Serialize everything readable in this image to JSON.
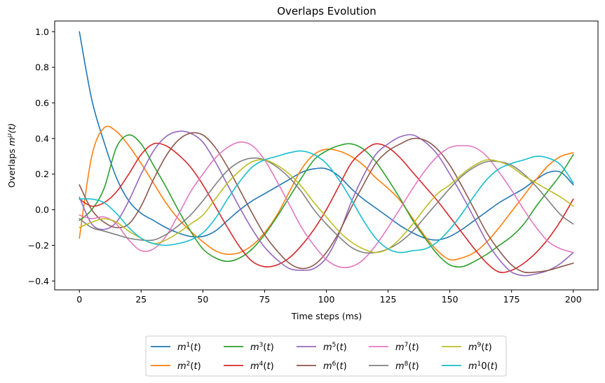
{
  "chart_data": {
    "type": "line",
    "title": "Overlaps Evolution",
    "xlabel": "Time steps (ms)",
    "ylabel": "Overlaps mμ(t)",
    "ylabel_parts": {
      "base": "Overlaps ",
      "var": "m",
      "sup": "μ",
      "tail": "(t)"
    },
    "xlim": [
      -10,
      210
    ],
    "ylim": [
      -0.45,
      1.06
    ],
    "xticks": [
      0,
      25,
      50,
      75,
      100,
      125,
      150,
      175,
      200
    ],
    "yticks": [
      -0.4,
      -0.2,
      0.0,
      0.2,
      0.4,
      0.6,
      0.8,
      1.0
    ],
    "ytick_labels": [
      "−0.4",
      "−0.2",
      "0.0",
      "0.2",
      "0.4",
      "0.6",
      "0.8",
      "1.0"
    ],
    "grid": false,
    "legend_placement": "below",
    "x": [
      0,
      5,
      10,
      15,
      20,
      25,
      30,
      35,
      40,
      45,
      50,
      55,
      60,
      65,
      70,
      75,
      80,
      85,
      90,
      95,
      100,
      105,
      110,
      115,
      120,
      125,
      130,
      135,
      140,
      145,
      150,
      155,
      160,
      165,
      170,
      175,
      180,
      185,
      190,
      195,
      200
    ],
    "series": [
      {
        "name": "m1(t)",
        "sup": "1",
        "color": "#1f77b4",
        "values": [
          1.0,
          0.62,
          0.38,
          0.18,
          0.05,
          -0.02,
          -0.06,
          -0.1,
          -0.13,
          -0.15,
          -0.15,
          -0.12,
          -0.06,
          0.0,
          0.05,
          0.09,
          0.13,
          0.17,
          0.21,
          0.23,
          0.23,
          0.19,
          0.12,
          0.06,
          0.01,
          -0.04,
          -0.09,
          -0.13,
          -0.16,
          -0.17,
          -0.15,
          -0.11,
          -0.06,
          -0.01,
          0.04,
          0.08,
          0.12,
          0.17,
          0.21,
          0.21,
          0.14
        ]
      },
      {
        "name": "m2(t)",
        "sup": "2",
        "color": "#ff7f0e",
        "values": [
          -0.16,
          0.3,
          0.46,
          0.44,
          0.36,
          0.26,
          0.15,
          0.04,
          -0.05,
          -0.12,
          -0.18,
          -0.23,
          -0.25,
          -0.24,
          -0.2,
          -0.13,
          -0.03,
          0.1,
          0.23,
          0.31,
          0.34,
          0.33,
          0.3,
          0.25,
          0.18,
          0.12,
          0.05,
          -0.05,
          -0.15,
          -0.23,
          -0.28,
          -0.27,
          -0.24,
          -0.18,
          -0.1,
          -0.01,
          0.08,
          0.17,
          0.25,
          0.3,
          0.32
        ]
      },
      {
        "name": "m3(t)",
        "sup": "3",
        "color": "#2ca02c",
        "values": [
          -0.06,
          0.0,
          0.12,
          0.35,
          0.42,
          0.37,
          0.25,
          0.13,
          0.0,
          -0.12,
          -0.22,
          -0.27,
          -0.29,
          -0.27,
          -0.22,
          -0.14,
          -0.04,
          0.07,
          0.18,
          0.28,
          0.33,
          0.36,
          0.37,
          0.34,
          0.27,
          0.17,
          0.06,
          -0.06,
          -0.16,
          -0.25,
          -0.31,
          -0.32,
          -0.29,
          -0.25,
          -0.2,
          -0.15,
          -0.08,
          0.02,
          0.11,
          0.2,
          0.31
        ]
      },
      {
        "name": "m4(t)",
        "sup": "4",
        "color": "#d62728",
        "values": [
          0.06,
          0.02,
          0.04,
          0.1,
          0.2,
          0.31,
          0.37,
          0.36,
          0.31,
          0.24,
          0.14,
          0.02,
          -0.1,
          -0.21,
          -0.29,
          -0.32,
          -0.31,
          -0.27,
          -0.2,
          -0.11,
          0.0,
          0.13,
          0.26,
          0.33,
          0.37,
          0.35,
          0.29,
          0.21,
          0.13,
          0.05,
          -0.04,
          -0.13,
          -0.22,
          -0.3,
          -0.35,
          -0.34,
          -0.3,
          -0.24,
          -0.16,
          -0.06,
          0.06
        ]
      },
      {
        "name": "m5(t)",
        "sup": "5",
        "color": "#9467bd",
        "values": [
          0.07,
          -0.08,
          -0.11,
          -0.07,
          0.05,
          0.2,
          0.33,
          0.41,
          0.44,
          0.43,
          0.38,
          0.27,
          0.14,
          0.01,
          -0.11,
          -0.21,
          -0.28,
          -0.33,
          -0.34,
          -0.33,
          -0.27,
          -0.14,
          0.04,
          0.19,
          0.31,
          0.37,
          0.41,
          0.42,
          0.38,
          0.31,
          0.2,
          0.08,
          -0.05,
          -0.18,
          -0.28,
          -0.35,
          -0.37,
          -0.36,
          -0.34,
          -0.3,
          -0.24
        ]
      },
      {
        "name": "m6(t)",
        "sup": "6",
        "color": "#8c564b",
        "values": [
          0.14,
          0.0,
          -0.07,
          -0.1,
          -0.08,
          0.02,
          0.17,
          0.3,
          0.39,
          0.43,
          0.42,
          0.35,
          0.24,
          0.11,
          -0.02,
          -0.14,
          -0.23,
          -0.3,
          -0.33,
          -0.31,
          -0.24,
          -0.13,
          0.01,
          0.14,
          0.26,
          0.33,
          0.37,
          0.4,
          0.39,
          0.34,
          0.25,
          0.13,
          0.0,
          -0.13,
          -0.23,
          -0.31,
          -0.35,
          -0.35,
          -0.34,
          -0.32,
          -0.3
        ]
      },
      {
        "name": "m7(t)",
        "sup": "7",
        "color": "#e377c2",
        "values": [
          -0.03,
          -0.05,
          -0.04,
          -0.08,
          -0.17,
          -0.23,
          -0.22,
          -0.15,
          -0.03,
          0.1,
          0.2,
          0.29,
          0.35,
          0.38,
          0.36,
          0.28,
          0.16,
          0.03,
          -0.1,
          -0.2,
          -0.28,
          -0.32,
          -0.32,
          -0.28,
          -0.2,
          -0.1,
          0.01,
          0.12,
          0.22,
          0.3,
          0.35,
          0.36,
          0.35,
          0.3,
          0.21,
          0.11,
          0.0,
          -0.1,
          -0.18,
          -0.22,
          -0.24
        ]
      },
      {
        "name": "m8(t)",
        "sup": "8",
        "color": "#7f7f7f",
        "values": [
          -0.05,
          -0.1,
          -0.12,
          -0.14,
          -0.16,
          -0.17,
          -0.17,
          -0.14,
          -0.09,
          -0.03,
          0.05,
          0.14,
          0.22,
          0.27,
          0.29,
          0.28,
          0.24,
          0.18,
          0.1,
          0.0,
          -0.08,
          -0.15,
          -0.21,
          -0.24,
          -0.24,
          -0.22,
          -0.18,
          -0.12,
          -0.04,
          0.04,
          0.12,
          0.19,
          0.24,
          0.27,
          0.27,
          0.25,
          0.2,
          0.13,
          0.05,
          -0.03,
          -0.08
        ]
      },
      {
        "name": "m9(t)",
        "sup": "9",
        "color": "#bcbd22",
        "values": [
          -0.1,
          -0.07,
          -0.05,
          -0.07,
          -0.12,
          -0.16,
          -0.19,
          -0.17,
          -0.13,
          -0.08,
          -0.03,
          0.06,
          0.15,
          0.22,
          0.27,
          0.28,
          0.25,
          0.2,
          0.13,
          0.04,
          -0.04,
          -0.12,
          -0.18,
          -0.22,
          -0.24,
          -0.22,
          -0.16,
          -0.08,
          0.01,
          0.09,
          0.14,
          0.2,
          0.25,
          0.28,
          0.27,
          0.24,
          0.19,
          0.15,
          0.11,
          0.07,
          0.02
        ]
      },
      {
        "name": "m10(t)",
        "sup": "1",
        "color": "#17becf",
        "values": [
          0.06,
          0.06,
          0.04,
          -0.02,
          -0.1,
          -0.16,
          -0.19,
          -0.2,
          -0.19,
          -0.17,
          -0.13,
          -0.05,
          0.06,
          0.16,
          0.24,
          0.28,
          0.3,
          0.32,
          0.33,
          0.31,
          0.26,
          0.17,
          0.06,
          -0.06,
          -0.16,
          -0.22,
          -0.24,
          -0.23,
          -0.22,
          -0.18,
          -0.11,
          -0.02,
          0.08,
          0.17,
          0.23,
          0.26,
          0.28,
          0.3,
          0.29,
          0.25,
          0.15
        ]
      }
    ]
  }
}
